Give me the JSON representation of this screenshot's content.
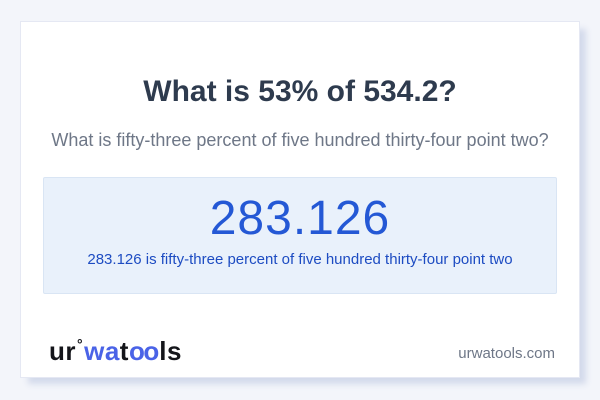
{
  "page": {
    "title": "What is 53% of 534.2?",
    "subtitle": "What is fifty-three percent of five hundred thirty-four point two?"
  },
  "result": {
    "value": "283.126",
    "sentence": "283.126 is fifty-three percent of five hundred thirty-four point two"
  },
  "footer": {
    "logo": {
      "part_ur": "ur",
      "degree_mark": "°",
      "part_wa": "wa",
      "part_t": "t",
      "part_oo": "oo",
      "part_ls": "ls"
    },
    "site": "urwatools.com"
  },
  "colors": {
    "page_bg": "#f3f5fa",
    "card_bg": "#ffffff",
    "card_border": "#e5e8f3",
    "shadow": "#d3daeb",
    "title": "#2e3b4e",
    "muted": "#6e7787",
    "result_box_bg": "#e9f1fb",
    "result_box_border": "#d9e5f4",
    "result_value": "#2458d5",
    "result_sentence": "#1d4cc2",
    "logo_dark": "#14151a",
    "logo_blue": "#4a63e7"
  }
}
